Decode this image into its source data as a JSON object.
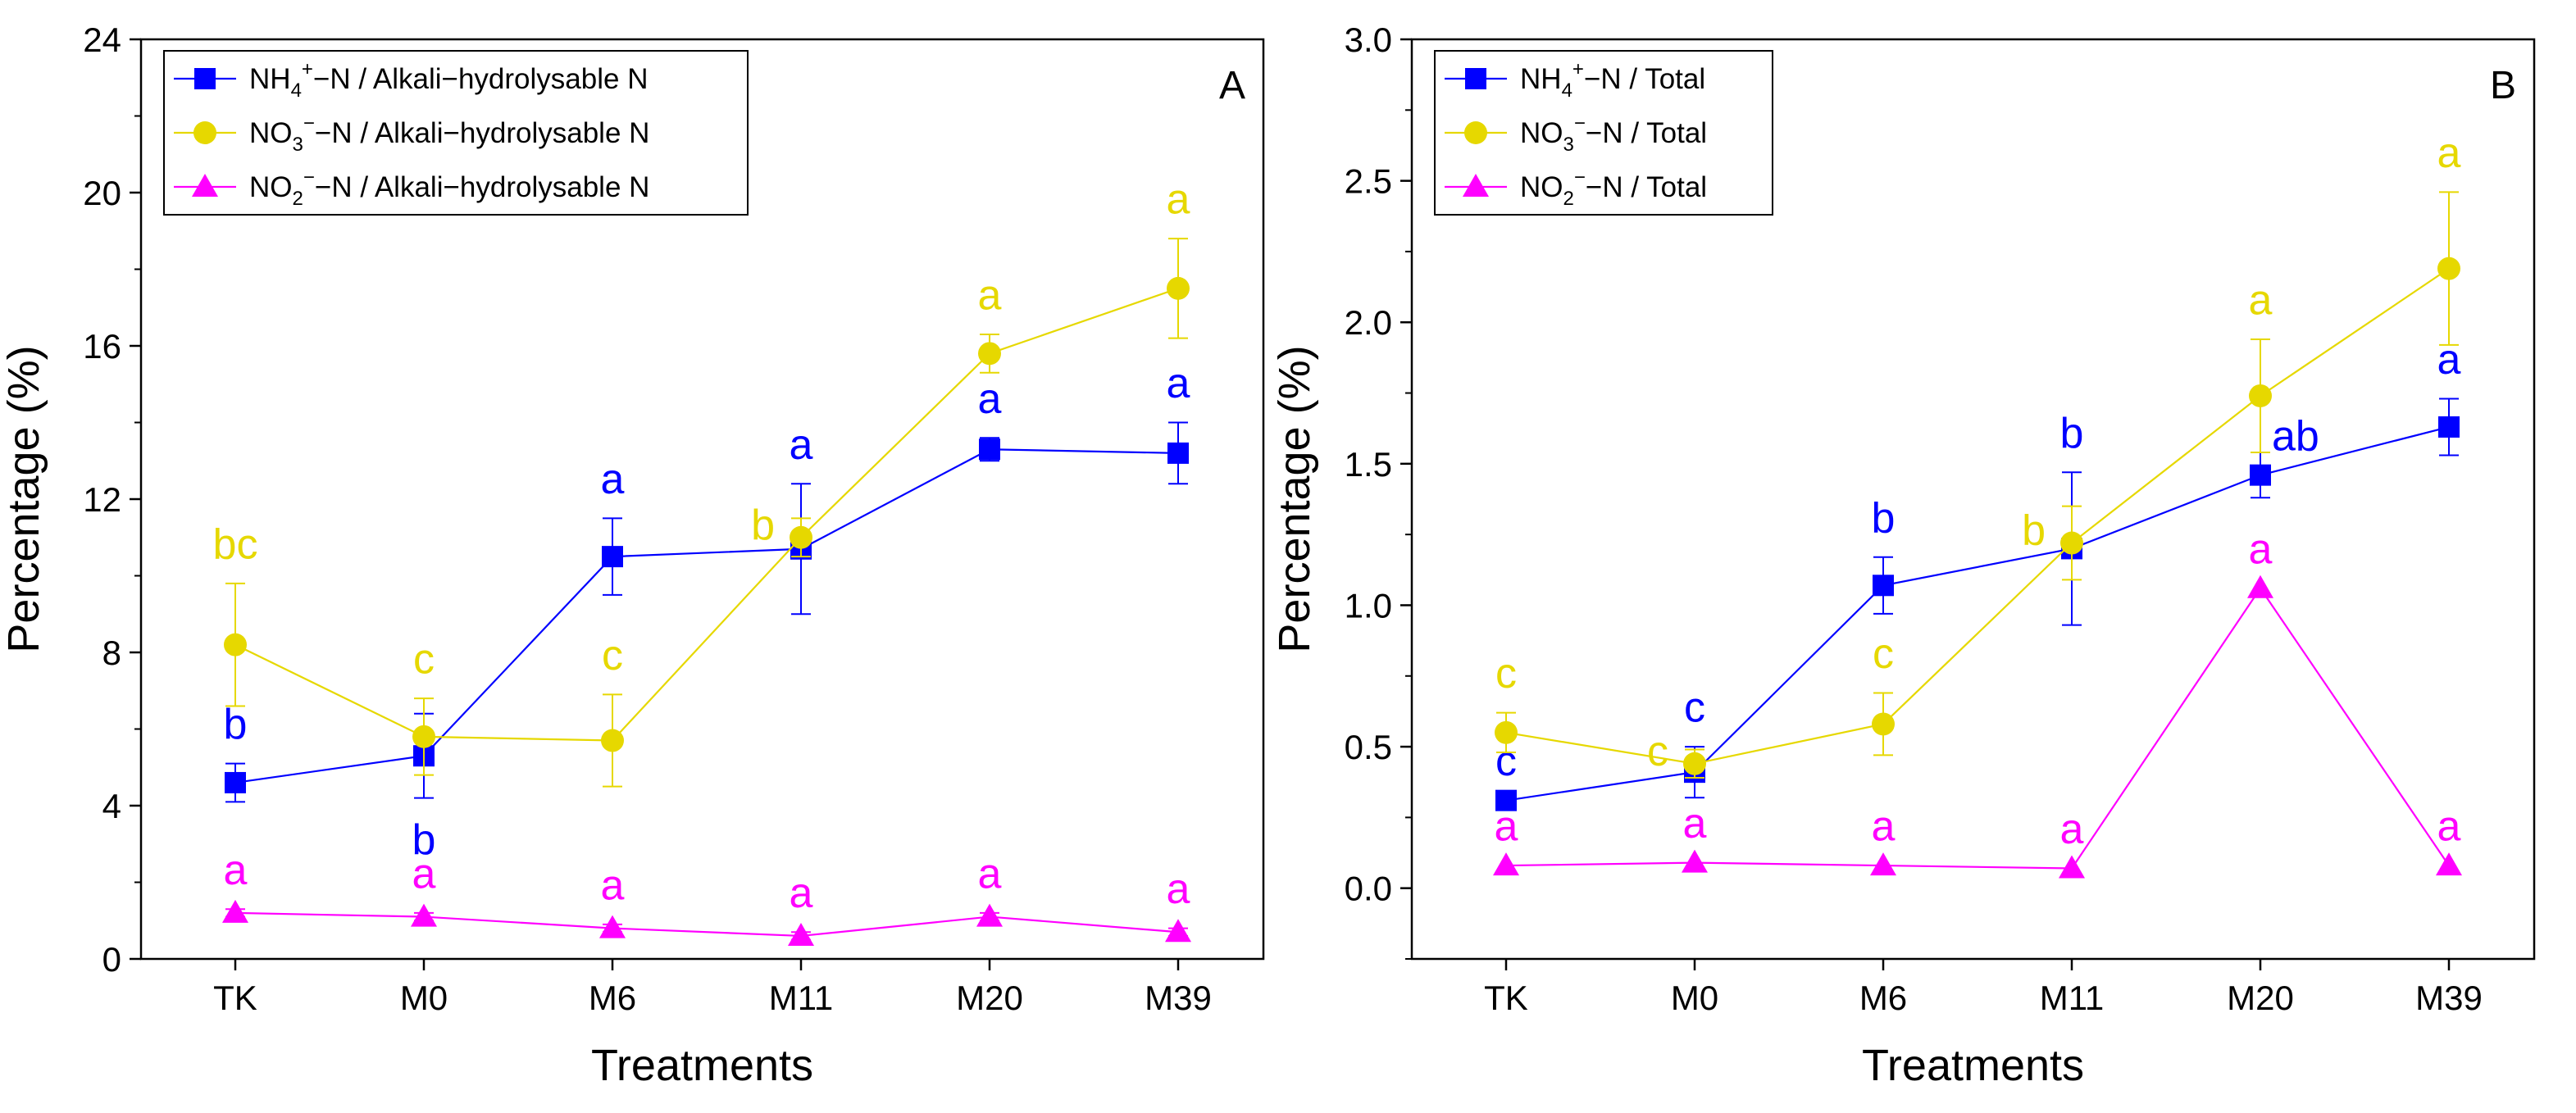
{
  "chart_data": [
    {
      "id": "A",
      "type": "line",
      "panel_label": "A",
      "xlabel": "Treatments",
      "ylabel": "Percentage (%)",
      "categories": [
        "TK",
        "M0",
        "M6",
        "M11",
        "M20",
        "M39"
      ],
      "ylim": [
        0,
        24
      ],
      "yticks": [
        0,
        4,
        8,
        12,
        16,
        20,
        24
      ],
      "ytick_labels": [
        "0",
        "4",
        "8",
        "12",
        "16",
        "20",
        "24"
      ],
      "minor_step": 2,
      "legend_position": "top-left",
      "series": [
        {
          "name": "NH4+-N / Alkali-hydrolysable N",
          "legend_text": {
            "pre": "NH",
            "sub": "4",
            "sup": "+",
            "post": "−N / Alkali−hydrolysable N"
          },
          "marker": "square",
          "color": "#0000ff",
          "values": [
            4.6,
            5.3,
            10.5,
            10.7,
            13.3,
            13.2
          ],
          "errors": [
            0.5,
            1.1,
            1.0,
            1.7,
            0.3,
            0.8
          ],
          "letters": [
            "b",
            "b",
            "a",
            "a",
            "a",
            "a"
          ],
          "letter_positions": [
            "above",
            "below",
            "above",
            "above",
            "above",
            "above"
          ]
        },
        {
          "name": "NO3−-N / Alkali-hydrolysable N",
          "legend_text": {
            "pre": "NO",
            "sub": "3",
            "sup": "−",
            "post": "−N / Alkali−hydrolysable N"
          },
          "marker": "circle",
          "color": "#e6d800",
          "values": [
            8.2,
            5.8,
            5.7,
            11.0,
            15.8,
            17.5
          ],
          "errors": [
            1.6,
            1.0,
            1.2,
            0.5,
            0.5,
            1.3
          ],
          "letters": [
            "bc",
            "c",
            "c",
            "b",
            "a",
            "a"
          ],
          "letter_positions": [
            "above",
            "above",
            "above",
            "left",
            "above",
            "above"
          ]
        },
        {
          "name": "NO2−-N / Alkali-hydrolysable N",
          "legend_text": {
            "pre": "NO",
            "sub": "2",
            "sup": "−",
            "post": "−N / Alkali−hydrolysable N"
          },
          "marker": "triangle",
          "color": "#ff00ff",
          "values": [
            1.2,
            1.1,
            0.8,
            0.6,
            1.1,
            0.7
          ],
          "errors": [
            0.1,
            0.1,
            0.1,
            0.1,
            0.1,
            0.1
          ],
          "letters": [
            "a",
            "a",
            "a",
            "a",
            "a",
            "a"
          ],
          "letter_positions": [
            "above",
            "above",
            "above",
            "above",
            "above",
            "above"
          ]
        }
      ]
    },
    {
      "id": "B",
      "type": "line",
      "panel_label": "B",
      "xlabel": "Treatments",
      "ylabel": "Percentage (%)",
      "categories": [
        "TK",
        "M0",
        "M6",
        "M11",
        "M20",
        "M39"
      ],
      "ylim": [
        -0.25,
        3.0
      ],
      "yticks": [
        0.0,
        0.5,
        1.0,
        1.5,
        2.0,
        2.5,
        3.0
      ],
      "ytick_labels": [
        "0.0",
        "0.5",
        "1.0",
        "1.5",
        "2.0",
        "2.5",
        "3.0"
      ],
      "minor_step": 0.25,
      "legend_position": "top-left",
      "series": [
        {
          "name": "NH4+-N / Total",
          "legend_text": {
            "pre": "NH",
            "sub": "4",
            "sup": "+",
            "post": "−N / Total"
          },
          "marker": "square",
          "color": "#0000ff",
          "values": [
            0.31,
            0.41,
            1.07,
            1.2,
            1.46,
            1.63
          ],
          "errors": [
            0.0,
            0.09,
            0.1,
            0.27,
            0.08,
            0.1
          ],
          "letters": [
            "c",
            "c",
            "b",
            "b",
            "ab",
            "a"
          ],
          "letter_positions": [
            "above",
            "above",
            "above",
            "above",
            "right",
            "above"
          ]
        },
        {
          "name": "NO3−-N / Total",
          "legend_text": {
            "pre": "NO",
            "sub": "3",
            "sup": "−",
            "post": "−N / Total"
          },
          "marker": "circle",
          "color": "#e6d800",
          "values": [
            0.55,
            0.44,
            0.58,
            1.22,
            1.74,
            2.19
          ],
          "errors": [
            0.07,
            0.05,
            0.11,
            0.13,
            0.2,
            0.27
          ],
          "letters": [
            "c",
            "c",
            "c",
            "b",
            "a",
            "a"
          ],
          "letter_positions": [
            "above",
            "left",
            "above",
            "left",
            "above",
            "above"
          ]
        },
        {
          "name": "NO2−-N / Total",
          "legend_text": {
            "pre": "NO",
            "sub": "2",
            "sup": "−",
            "post": "−N / Total"
          },
          "marker": "triangle",
          "color": "#ff00ff",
          "values": [
            0.08,
            0.09,
            0.08,
            0.07,
            1.06,
            0.08
          ],
          "errors": [
            0.0,
            0.0,
            0.0,
            0.0,
            0.0,
            0.0
          ],
          "letters": [
            "a",
            "a",
            "a",
            "a",
            "a",
            "a"
          ],
          "letter_positions": [
            "above",
            "above",
            "above",
            "above",
            "above",
            "above"
          ]
        }
      ]
    }
  ]
}
